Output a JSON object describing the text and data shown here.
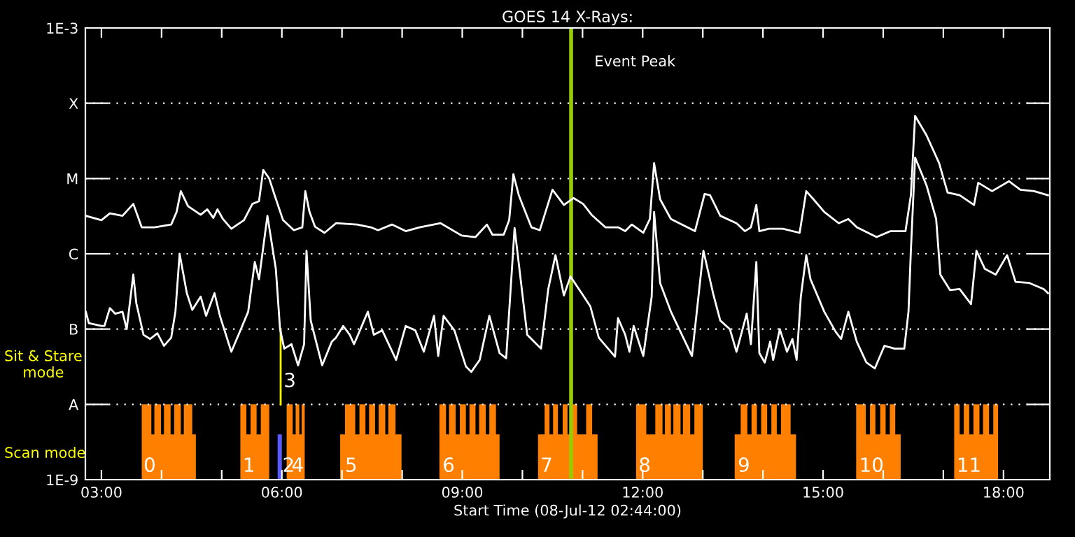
{
  "chart_data": {
    "type": "line",
    "title": "GOES 14 X-Rays:",
    "xlabel": "Start Time (08-Jul-12 02:44:00)",
    "xlim": [
      2.733,
      18.77
    ],
    "xticks": [
      {
        "value": 3,
        "label": "03:00"
      },
      {
        "value": 4,
        "label": null
      },
      {
        "value": 5,
        "label": null
      },
      {
        "value": 6,
        "label": "06:00"
      },
      {
        "value": 7,
        "label": null
      },
      {
        "value": 8,
        "label": null
      },
      {
        "value": 9,
        "label": "09:00"
      },
      {
        "value": 10,
        "label": null
      },
      {
        "value": 11,
        "label": null
      },
      {
        "value": 12,
        "label": "12:00"
      },
      {
        "value": 13,
        "label": null
      },
      {
        "value": 14,
        "label": null
      },
      {
        "value": 15,
        "label": "15:00"
      },
      {
        "value": 16,
        "label": null
      },
      {
        "value": 17,
        "label": null
      },
      {
        "value": 18,
        "label": "18:00"
      }
    ],
    "log": "y",
    "ylim": [
      1e-09,
      0.001
    ],
    "yticks": [
      {
        "value": 1e-09,
        "label": "1E-9"
      },
      {
        "value": 1e-08,
        "label": "A"
      },
      {
        "value": 1e-07,
        "label": "B"
      },
      {
        "value": 1e-06,
        "label": "C"
      },
      {
        "value": 1e-05,
        "label": "M"
      },
      {
        "value": 0.0001,
        "label": "X"
      },
      {
        "value": 0.001,
        "label": "1E-3"
      }
    ],
    "grid": "y",
    "legend": false,
    "series": [
      {
        "type": "area",
        "color": "#ff8000",
        "x": [
          3.67,
          3.83,
          3.88,
          3.99,
          4.04,
          4.15,
          4.21,
          4.32,
          4.37,
          4.51,
          4.57,
          5.31,
          5.41,
          5.48,
          5.58,
          5.65,
          5.79,
          6.08,
          6.18,
          6.23,
          6.29,
          6.33,
          6.38,
          6.97,
          7.05,
          7.22,
          7.29,
          7.39,
          7.45,
          7.55,
          7.61,
          7.72,
          7.77,
          7.89,
          7.99,
          8.62,
          8.73,
          8.78,
          8.89,
          8.96,
          9.06,
          9.12,
          9.22,
          9.28,
          9.39,
          9.45,
          9.56,
          9.62,
          10.26,
          10.37,
          10.45,
          10.51,
          10.59,
          10.67,
          10.75,
          10.83,
          10.91,
          11.06,
          11.16,
          11.25,
          11.89,
          12.06,
          12.21,
          12.33,
          12.37,
          12.47,
          12.51,
          12.63,
          12.67,
          12.79,
          12.86,
          13.0,
          13.53,
          13.63,
          13.74,
          13.81,
          13.9,
          13.97,
          14.07,
          14.14,
          14.23,
          14.3,
          14.46,
          14.55,
          15.55,
          15.71,
          15.78,
          15.87,
          15.95,
          16.04,
          16.11,
          16.2,
          16.29,
          17.18,
          17.27,
          17.34,
          17.43,
          17.5,
          17.6,
          17.66,
          17.76,
          17.83,
          17.91
        ],
        "values": [
          1e-08,
          4e-09,
          1e-08,
          4e-09,
          1e-08,
          4e-09,
          1e-08,
          4e-09,
          1e-08,
          4e-09,
          null,
          1e-08,
          4e-09,
          1e-08,
          4e-09,
          1e-08,
          null,
          1e-08,
          4e-09,
          1e-08,
          4e-09,
          1e-08,
          null,
          4e-09,
          1e-08,
          4e-09,
          1e-08,
          4e-09,
          1e-08,
          4e-09,
          1e-08,
          4e-09,
          1e-08,
          4e-09,
          null,
          1e-08,
          4e-09,
          1e-08,
          4e-09,
          1e-08,
          4e-09,
          1e-08,
          4e-09,
          1e-08,
          4e-09,
          1e-08,
          4e-09,
          null,
          4e-09,
          1e-08,
          4e-09,
          1e-08,
          4e-09,
          1e-08,
          4e-09,
          1e-08,
          4e-09,
          1e-08,
          4e-09,
          null,
          1e-08,
          4e-09,
          1e-08,
          4e-09,
          1e-08,
          4e-09,
          1e-08,
          4e-09,
          1e-08,
          4e-09,
          1e-08,
          null,
          4e-09,
          1e-08,
          4e-09,
          1e-08,
          4e-09,
          1e-08,
          4e-09,
          1e-08,
          4e-09,
          1e-08,
          4e-09,
          null,
          1e-08,
          4e-09,
          1e-08,
          4e-09,
          1e-08,
          4e-09,
          1e-08,
          4e-09,
          null,
          1e-08,
          4e-09,
          1e-08,
          4e-09,
          1e-08,
          4e-09,
          1e-08,
          4e-09,
          1e-08,
          1e-09
        ]
      },
      {
        "type": "bar",
        "color": "#5a5aff",
        "x": [
          5.965
        ],
        "values": [
          4e-09
        ]
      },
      {
        "type": "line",
        "color": "#ffff00",
        "x": [
          5.98,
          5.98
        ],
        "values": [
          1e-08,
          1e-07
        ]
      },
      {
        "color": "#ffffff",
        "x": [
          2.74,
          3.0,
          3.14,
          3.35,
          3.53,
          3.67,
          3.88,
          4.16,
          4.25,
          4.32,
          4.44,
          4.65,
          4.76,
          4.86,
          4.93,
          5.02,
          5.16,
          5.37,
          5.51,
          5.62,
          5.69,
          5.79,
          5.88,
          6.02,
          6.2,
          6.34,
          6.39,
          6.46,
          6.55,
          6.71,
          6.9,
          7.25,
          7.48,
          7.6,
          7.83,
          8.06,
          8.29,
          8.64,
          8.99,
          9.22,
          9.41,
          9.5,
          9.69,
          9.78,
          9.85,
          9.94,
          10.15,
          10.29,
          10.5,
          10.69,
          10.85,
          11.01,
          11.15,
          11.38,
          11.59,
          11.71,
          11.82,
          12.01,
          12.12,
          12.19,
          12.29,
          12.47,
          12.87,
          13.03,
          13.12,
          13.29,
          13.56,
          13.7,
          13.8,
          13.89,
          13.94,
          14.1,
          14.33,
          14.61,
          14.72,
          14.84,
          15.02,
          15.26,
          15.42,
          15.56,
          15.89,
          16.12,
          16.37,
          16.46,
          16.53,
          16.72,
          16.93,
          17.07,
          17.27,
          17.51,
          17.58,
          17.81,
          18.09,
          18.28,
          18.51,
          18.74
        ],
        "values": [
          3.2e-06,
          2.8e-06,
          3.45e-06,
          3.2e-06,
          4.6e-06,
          2.25e-06,
          2.25e-06,
          2.45e-06,
          3.6e-06,
          6.8e-06,
          4.3e-06,
          3.3e-06,
          3.9e-06,
          3e-06,
          3.9e-06,
          2.9e-06,
          2.15e-06,
          2.8e-06,
          4.6e-06,
          5e-06,
          1.3e-05,
          1e-05,
          6e-06,
          2.8e-06,
          2.06e-06,
          2.25e-06,
          6.8e-06,
          3.6e-06,
          2.3e-06,
          1.9e-06,
          2.55e-06,
          2.45e-06,
          2.25e-06,
          2.06e-06,
          2.45e-06,
          2e-06,
          2.25e-06,
          2.55e-06,
          1.75e-06,
          1.67e-06,
          2.45e-06,
          1.8e-06,
          1.8e-06,
          2.8e-06,
          1.14e-05,
          6e-06,
          2.25e-06,
          2.06e-06,
          7.1e-06,
          4.45e-06,
          5.5e-06,
          4.6e-06,
          3.3e-06,
          2.25e-06,
          2.25e-06,
          2e-06,
          2.45e-06,
          1.9e-06,
          2.9e-06,
          1.6e-05,
          5.3e-06,
          2.9e-06,
          2e-06,
          6.25e-06,
          6e-06,
          3.2e-06,
          2.55e-06,
          2e-06,
          2.25e-06,
          4.45e-06,
          2e-06,
          2.15e-06,
          2.15e-06,
          1.9e-06,
          6.8e-06,
          5.3e-06,
          3.6e-06,
          2.55e-06,
          2.9e-06,
          2.25e-06,
          1.67e-06,
          2e-06,
          2e-06,
          6e-06,
          6.8e-05,
          3.75e-05,
          1.6e-05,
          6.5e-06,
          6e-06,
          4.45e-06,
          8.8e-06,
          6.8e-06,
          9.2e-06,
          7.1e-06,
          6.8e-06,
          6e-06
        ]
      },
      {
        "color": "#ffffff",
        "x": [
          2.74,
          2.79,
          3.0,
          3.05,
          3.14,
          3.23,
          3.35,
          3.42,
          3.53,
          3.58,
          3.7,
          3.81,
          3.93,
          4.04,
          4.16,
          4.23,
          4.3,
          4.42,
          4.51,
          4.65,
          4.74,
          4.88,
          4.97,
          5.16,
          5.28,
          5.44,
          5.55,
          5.62,
          5.76,
          5.9,
          5.97,
          6.04,
          6.16,
          6.27,
          6.37,
          6.41,
          6.48,
          6.67,
          6.83,
          6.9,
          7.02,
          7.13,
          7.2,
          7.43,
          7.53,
          7.67,
          7.9,
          8.06,
          8.22,
          8.36,
          8.53,
          8.6,
          8.69,
          8.87,
          9.06,
          9.15,
          9.29,
          9.45,
          9.62,
          9.73,
          9.87,
          10.08,
          10.31,
          10.43,
          10.55,
          10.69,
          10.8,
          11.01,
          11.13,
          11.27,
          11.54,
          11.59,
          11.71,
          11.78,
          11.85,
          12.01,
          12.15,
          12.19,
          12.29,
          12.47,
          12.82,
          13.01,
          13.17,
          13.29,
          13.45,
          13.56,
          13.73,
          13.8,
          13.89,
          13.94,
          14.03,
          14.12,
          14.17,
          14.28,
          14.4,
          14.49,
          14.56,
          14.63,
          14.72,
          14.79,
          15.02,
          15.21,
          15.3,
          15.42,
          15.56,
          15.72,
          15.86,
          16.02,
          16.19,
          16.35,
          16.42,
          16.46,
          16.53,
          16.72,
          16.88,
          16.95,
          17.11,
          17.27,
          17.46,
          17.55,
          17.69,
          17.87,
          18.06,
          18.2,
          18.43,
          18.67,
          18.74
        ],
        "values": [
          1.7e-07,
          1.2e-07,
          1.1e-07,
          1.1e-07,
          1.9e-07,
          1.6e-07,
          1.7e-07,
          1e-07,
          5.3e-07,
          2.2e-07,
          8.4e-08,
          7.4e-08,
          8.8e-08,
          6e-08,
          7.7e-08,
          1.7e-07,
          1e-06,
          3e-07,
          1.8e-07,
          2.7e-07,
          1.5e-07,
          3e-07,
          1.5e-07,
          5e-08,
          8.4e-08,
          1.7e-07,
          7.8e-07,
          4.6e-07,
          3.2e-06,
          6.3e-07,
          1e-07,
          5.5e-08,
          6.3e-08,
          3.3e-08,
          6.3e-08,
          1.1e-06,
          1.3e-07,
          3.3e-08,
          6.8e-08,
          7.7e-08,
          1.1e-07,
          8.4e-08,
          6.3e-08,
          1.7e-07,
          8.4e-08,
          9.6e-08,
          3.9e-08,
          1.1e-07,
          9.6e-08,
          5e-08,
          1.5e-07,
          4.4e-08,
          1.5e-07,
          9.6e-08,
          3.2e-08,
          2.7e-08,
          3.9e-08,
          1.5e-07,
          4.8e-08,
          4.1e-08,
          2.2e-06,
          8.4e-08,
          5.5e-08,
          3.4e-07,
          9.6e-07,
          2.8e-07,
          5e-07,
          2.8e-07,
          2e-07,
          7.7e-08,
          4.3e-08,
          1.4e-07,
          8.4e-08,
          5e-08,
          1.1e-07,
          4.4e-08,
          2.7e-07,
          3.6e-06,
          4.1e-07,
          1.7e-07,
          4.4e-08,
          1.1e-06,
          3e-07,
          1.3e-07,
          1e-07,
          5e-08,
          1.6e-07,
          6.3e-08,
          7.8e-07,
          4.8e-08,
          3.6e-08,
          6.8e-08,
          3.9e-08,
          1e-07,
          5e-08,
          7.4e-08,
          3.9e-08,
          2.7e-07,
          9.6e-07,
          4.6e-07,
          1.7e-07,
          9.2e-08,
          7.4e-08,
          1.7e-07,
          6.8e-08,
          3.6e-08,
          3e-08,
          6e-08,
          5.5e-08,
          5.5e-08,
          1.7e-07,
          1.1e-06,
          1.9e-05,
          8.1e-06,
          2.9e-06,
          5.3e-07,
          3.3e-07,
          3.4e-07,
          2.15e-07,
          1.1e-06,
          6.3e-07,
          5.3e-07,
          9.6e-07,
          4.25e-07,
          4.1e-07,
          3.4e-07,
          3e-07
        ]
      }
    ],
    "ref_lines": [
      {
        "axis": "x",
        "value": 10.81,
        "label": "Event Peak",
        "color": "#99cc00"
      }
    ],
    "annotations": [
      {
        "text": "0",
        "x": 3.7,
        "y": 1.5e-09
      },
      {
        "text": "1",
        "x": 5.35,
        "y": 1.5e-09
      },
      {
        "text": "2",
        "x": 6.01,
        "y": 1.5e-09
      },
      {
        "text": "4",
        "x": 6.16,
        "y": 1.5e-09
      },
      {
        "text": "5",
        "x": 7.05,
        "y": 1.5e-09
      },
      {
        "text": "6",
        "x": 8.67,
        "y": 1.5e-09
      },
      {
        "text": "7",
        "x": 10.3,
        "y": 1.5e-09
      },
      {
        "text": "8",
        "x": 11.93,
        "y": 1.5e-09
      },
      {
        "text": "9",
        "x": 13.58,
        "y": 1.5e-09
      },
      {
        "text": "10",
        "x": 15.6,
        "y": 1.5e-09
      },
      {
        "text": "11",
        "x": 17.22,
        "y": 1.5e-09
      },
      {
        "text": "3",
        "x": 6.03,
        "y": 2e-08
      },
      "Sit & Stare\nmode",
      "Scan mode"
    ]
  }
}
